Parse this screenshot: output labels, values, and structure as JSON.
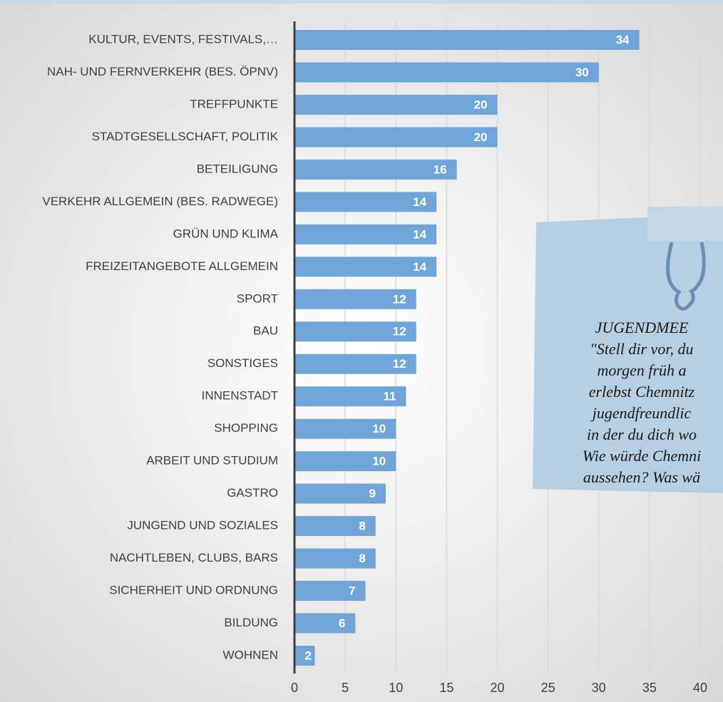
{
  "chart_data": {
    "type": "bar",
    "orientation": "horizontal",
    "categories": [
      "KULTUR, EVENTS, FESTIVALS,…",
      "NAH- UND FERNVERKEHR (BES. ÖPNV)",
      "TREFFPUNKTE",
      "STADTGESELLSCHAFT, POLITIK",
      "BETEILIGUNG",
      "VERKEHR ALLGEMEIN (BES. RADWEGE)",
      "GRÜN UND KLIMA",
      "FREIZEITANGEBOTE ALLGEMEIN",
      "SPORT",
      "BAU",
      "SONSTIGES",
      "INNENSTADT",
      "SHOPPING",
      "ARBEIT UND STUDIUM",
      "GASTRO",
      "JUNGEND UND SOZIALES",
      "NACHTLEBEN, CLUBS, BARS",
      "SICHERHEIT UND ORDNUNG",
      "BILDUNG",
      "WOHNEN"
    ],
    "values": [
      34,
      30,
      20,
      20,
      16,
      14,
      14,
      14,
      12,
      12,
      12,
      11,
      10,
      10,
      9,
      8,
      8,
      7,
      6,
      2
    ],
    "color": "#6fa5d9",
    "xlim": [
      0,
      42.3
    ],
    "xticks": [
      0,
      5,
      10,
      15,
      20,
      25,
      30,
      35,
      40
    ],
    "grid": true
  },
  "note": {
    "lines": [
      "JUGENDMEE",
      "\"Stell dir vor, du",
      "morgen früh a",
      "erlebst Chemnitz",
      "jugendfreundlic",
      "in der du dich wo",
      "Wie würde Chemni",
      "aussehen? Was wä"
    ]
  }
}
